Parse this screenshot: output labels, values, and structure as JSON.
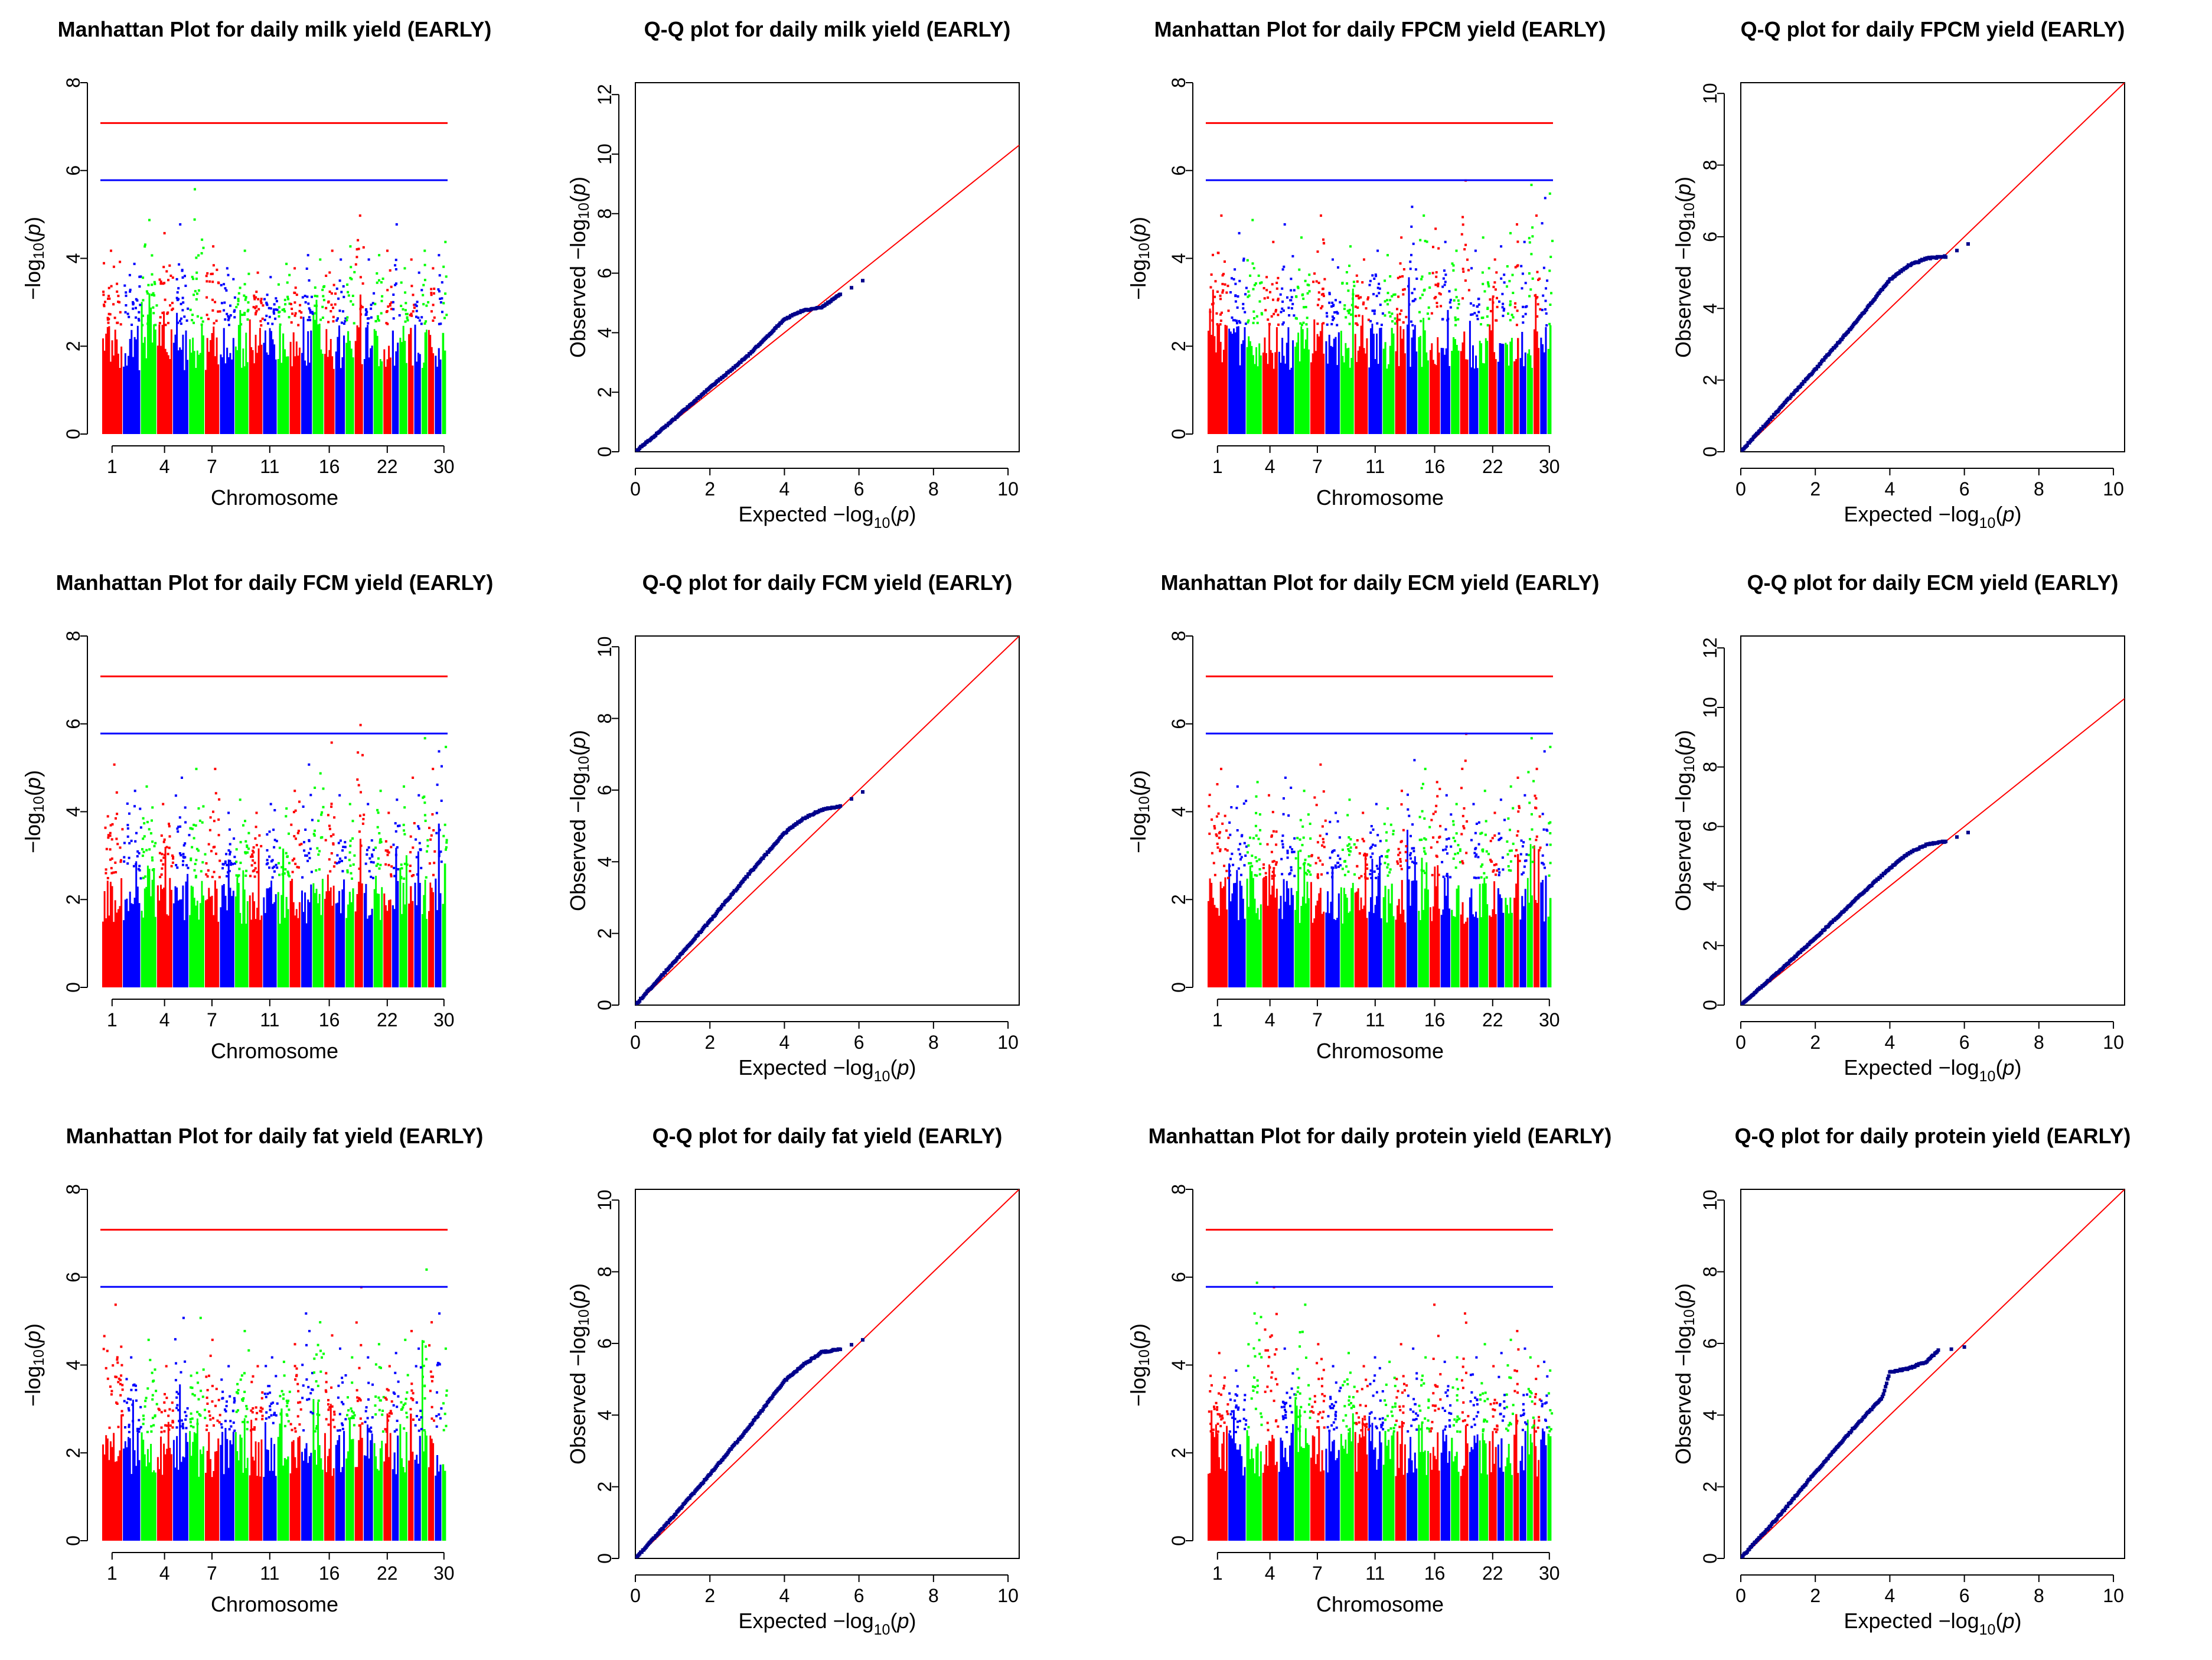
{
  "chart_data": [
    {
      "type": "manhattan",
      "title": "Manhattan Plot for daily milk yield (EARLY)",
      "xlabel": "Chromosome",
      "ylabel": "−log10(p)",
      "ylim": [
        0,
        8
      ],
      "yticks": [
        0,
        2,
        4,
        6,
        8
      ],
      "xtick_labels": [
        "1",
        "4",
        "7",
        "11",
        "16",
        "22",
        "30"
      ],
      "xtick_chromosomes": [
        1,
        4,
        7,
        11,
        16,
        22,
        30
      ],
      "colors": [
        "#ff0000",
        "#0000ff",
        "#00ff00"
      ],
      "genomewide_threshold": 7.08,
      "suggestive_threshold": 5.78,
      "chromosome_peaks": [
        4.2,
        3.9,
        4.9,
        4.6,
        4.8,
        5.6,
        4.3,
        3.8,
        4.2,
        3.7,
        3.6,
        3.9,
        3.8,
        4.1,
        4.0,
        4.2,
        4.0,
        4.3,
        5.0,
        4.0,
        4.1,
        4.2,
        4.8,
        3.8,
        4.0,
        3.7,
        4.2,
        3.8,
        4.1,
        4.4
      ]
    },
    {
      "type": "qq",
      "title": "Q-Q plot for daily milk yield (EARLY)",
      "xlabel": "Expected −log10(p)",
      "ylabel": "Observed −log10(p)",
      "xlim": [
        0,
        10.3
      ],
      "ylim": [
        0,
        12.4
      ],
      "xticks": [
        0,
        2,
        4,
        6,
        8,
        10
      ],
      "yticks": [
        0,
        2,
        4,
        6,
        8,
        10,
        12
      ],
      "observed_curve": [
        [
          0,
          0
        ],
        [
          1,
          1.05
        ],
        [
          2,
          2.15
        ],
        [
          3,
          3.2
        ],
        [
          4,
          4.45
        ],
        [
          4.5,
          4.75
        ],
        [
          5,
          4.85
        ],
        [
          5.5,
          5.3
        ],
        [
          6.1,
          5.75
        ]
      ]
    },
    {
      "type": "manhattan",
      "title": "Manhattan Plot for daily FPCM yield (EARLY)",
      "xlabel": "Chromosome",
      "ylabel": "−log10(p)",
      "ylim": [
        0,
        8
      ],
      "yticks": [
        0,
        2,
        4,
        6,
        8
      ],
      "xtick_labels": [
        "1",
        "4",
        "7",
        "11",
        "16",
        "22",
        "30"
      ],
      "xtick_chromosomes": [
        1,
        4,
        7,
        11,
        16,
        22,
        30
      ],
      "colors": [
        "#ff0000",
        "#0000ff",
        "#00ff00"
      ],
      "genomewide_threshold": 7.08,
      "suggestive_threshold": 5.78,
      "chromosome_peaks": [
        5.0,
        4.6,
        4.9,
        4.4,
        4.8,
        4.5,
        5.0,
        4.0,
        4.3,
        4.0,
        4.2,
        4.1,
        4.5,
        5.2,
        5.0,
        4.7,
        4.4,
        4.2,
        5.8,
        4.2,
        4.5,
        4.0,
        4.3,
        4.6,
        4.8,
        4.4,
        5.7,
        5.0,
        5.4,
        5.5
      ]
    },
    {
      "type": "qq",
      "title": "Q-Q plot for daily FPCM yield (EARLY)",
      "xlabel": "Expected −log10(p)",
      "ylabel": "Observed −log10(p)",
      "xlim": [
        0,
        10.3
      ],
      "ylim": [
        0,
        10.3
      ],
      "xticks": [
        0,
        2,
        4,
        6,
        8,
        10
      ],
      "yticks": [
        0,
        2,
        4,
        6,
        8,
        10
      ],
      "observed_curve": [
        [
          0,
          0
        ],
        [
          1,
          1.15
        ],
        [
          2,
          2.3
        ],
        [
          3,
          3.5
        ],
        [
          4,
          4.8
        ],
        [
          4.5,
          5.2
        ],
        [
          5,
          5.4
        ],
        [
          5.5,
          5.45
        ],
        [
          6.1,
          5.8
        ]
      ]
    },
    {
      "type": "manhattan",
      "title": "Manhattan Plot for daily FCM yield (EARLY)",
      "xlabel": "Chromosome",
      "ylabel": "−log10(p)",
      "ylim": [
        0,
        8
      ],
      "yticks": [
        0,
        2,
        4,
        6,
        8
      ],
      "xtick_labels": [
        "1",
        "4",
        "7",
        "11",
        "16",
        "22",
        "30"
      ],
      "xtick_chromosomes": [
        1,
        4,
        7,
        11,
        16,
        22,
        30
      ],
      "colors": [
        "#ff0000",
        "#0000ff",
        "#00ff00"
      ],
      "genomewide_threshold": 7.08,
      "suggestive_threshold": 5.78,
      "chromosome_peaks": [
        5.1,
        4.5,
        4.6,
        4.2,
        4.8,
        5.0,
        5.0,
        4.0,
        4.3,
        4.0,
        4.2,
        4.1,
        4.5,
        5.1,
        4.9,
        5.6,
        4.4,
        4.2,
        6.0,
        4.2,
        4.5,
        4.0,
        4.3,
        4.6,
        4.8,
        4.4,
        5.7,
        5.0,
        5.4,
        5.5
      ]
    },
    {
      "type": "qq",
      "title": "Q-Q plot for daily FCM yield (EARLY)",
      "xlabel": "Expected −log10(p)",
      "ylabel": "Observed −log10(p)",
      "xlim": [
        0,
        10.3
      ],
      "ylim": [
        0,
        10.3
      ],
      "xticks": [
        0,
        2,
        4,
        6,
        8,
        10
      ],
      "yticks": [
        0,
        2,
        4,
        6,
        8,
        10
      ],
      "observed_curve": [
        [
          0,
          0
        ],
        [
          1,
          1.15
        ],
        [
          2,
          2.35
        ],
        [
          3,
          3.6
        ],
        [
          4,
          4.8
        ],
        [
          4.5,
          5.2
        ],
        [
          5,
          5.45
        ],
        [
          5.5,
          5.55
        ],
        [
          6.1,
          5.95
        ]
      ]
    },
    {
      "type": "manhattan",
      "title": "Manhattan Plot for daily ECM yield (EARLY)",
      "xlabel": "Chromosome",
      "ylabel": "−log10(p)",
      "ylim": [
        0,
        8
      ],
      "yticks": [
        0,
        2,
        4,
        6,
        8
      ],
      "xtick_labels": [
        "1",
        "4",
        "7",
        "11",
        "16",
        "22",
        "30"
      ],
      "xtick_chromosomes": [
        1,
        4,
        7,
        11,
        16,
        22,
        30
      ],
      "colors": [
        "#ff0000",
        "#0000ff",
        "#00ff00"
      ],
      "genomewide_threshold": 7.08,
      "suggestive_threshold": 5.78,
      "chromosome_peaks": [
        5.0,
        4.6,
        4.7,
        4.4,
        4.8,
        4.5,
        5.1,
        4.0,
        4.3,
        4.0,
        4.2,
        4.1,
        4.5,
        5.2,
        5.0,
        4.7,
        4.4,
        4.2,
        5.8,
        4.2,
        4.5,
        4.0,
        4.3,
        4.6,
        4.8,
        4.4,
        5.7,
        5.0,
        5.4,
        5.5
      ]
    },
    {
      "type": "qq",
      "title": "Q-Q plot for daily ECM yield (EARLY)",
      "xlabel": "Expected −log10(p)",
      "ylabel": "Observed −log10(p)",
      "xlim": [
        0,
        10.3
      ],
      "ylim": [
        0,
        12.4
      ],
      "xticks": [
        0,
        2,
        4,
        6,
        8,
        10
      ],
      "yticks": [
        0,
        2,
        4,
        6,
        8,
        10,
        12
      ],
      "observed_curve": [
        [
          0,
          0
        ],
        [
          1,
          1.1
        ],
        [
          2,
          2.25
        ],
        [
          3,
          3.45
        ],
        [
          4,
          4.6
        ],
        [
          4.5,
          5.1
        ],
        [
          5,
          5.4
        ],
        [
          5.5,
          5.5
        ],
        [
          6.1,
          5.8
        ]
      ]
    },
    {
      "type": "manhattan",
      "title": "Manhattan Plot for daily fat yield (EARLY)",
      "xlabel": "Chromosome",
      "ylabel": "−log10(p)",
      "ylim": [
        0,
        8
      ],
      "yticks": [
        0,
        2,
        4,
        6,
        8
      ],
      "xtick_labels": [
        "1",
        "4",
        "7",
        "11",
        "16",
        "22",
        "30"
      ],
      "xtick_chromosomes": [
        1,
        4,
        7,
        11,
        16,
        22,
        30
      ],
      "colors": [
        "#ff0000",
        "#0000ff",
        "#00ff00"
      ],
      "genomewide_threshold": 7.08,
      "suggestive_threshold": 5.78,
      "chromosome_peaks": [
        5.4,
        4.2,
        4.6,
        4.0,
        5.1,
        5.1,
        4.6,
        4.0,
        4.8,
        4.0,
        4.2,
        4.1,
        4.5,
        5.2,
        5.0,
        4.7,
        4.4,
        4.2,
        5.8,
        4.2,
        4.5,
        4.0,
        4.3,
        4.6,
        4.8,
        4.4,
        6.2,
        5.0,
        5.2,
        4.4
      ]
    },
    {
      "type": "qq",
      "title": "Q-Q plot for daily fat yield (EARLY)",
      "xlabel": "Expected −log10(p)",
      "ylabel": "Observed −log10(p)",
      "xlim": [
        0,
        10.3
      ],
      "ylim": [
        0,
        10.3
      ],
      "xticks": [
        0,
        2,
        4,
        6,
        8,
        10
      ],
      "yticks": [
        0,
        2,
        4,
        6,
        8,
        10
      ],
      "observed_curve": [
        [
          0,
          0
        ],
        [
          1,
          1.15
        ],
        [
          2,
          2.35
        ],
        [
          3,
          3.6
        ],
        [
          4,
          4.95
        ],
        [
          4.5,
          5.4
        ],
        [
          5,
          5.75
        ],
        [
          5.5,
          5.85
        ],
        [
          6.1,
          6.1
        ]
      ]
    },
    {
      "type": "manhattan",
      "title": "Manhattan Plot for daily protein yield (EARLY)",
      "xlabel": "Chromosome",
      "ylabel": "−log10(p)",
      "ylim": [
        0,
        8
      ],
      "yticks": [
        0,
        2,
        4,
        6,
        8
      ],
      "xtick_labels": [
        "1",
        "4",
        "7",
        "11",
        "16",
        "22",
        "30"
      ],
      "xtick_chromosomes": [
        1,
        4,
        7,
        11,
        16,
        22,
        30
      ],
      "colors": [
        "#ff0000",
        "#0000ff",
        "#00ff00"
      ],
      "genomewide_threshold": 7.08,
      "suggestive_threshold": 5.78,
      "chromosome_peaks": [
        4.3,
        3.9,
        5.9,
        5.8,
        4.4,
        5.4,
        4.5,
        4.0,
        4.3,
        4.0,
        4.2,
        4.1,
        4.5,
        4.4,
        4.2,
        5.4,
        4.1,
        4.2,
        5.2,
        4.2,
        4.5,
        4.0,
        4.3,
        4.6,
        4.8,
        4.4,
        4.2,
        4.0,
        4.1,
        3.9
      ]
    },
    {
      "type": "qq",
      "title": "Q-Q plot for daily protein yield (EARLY)",
      "xlabel": "Expected −log10(p)",
      "ylabel": "Observed −log10(p)",
      "xlim": [
        0,
        10.3
      ],
      "ylim": [
        0,
        10.3
      ],
      "xticks": [
        0,
        2,
        4,
        6,
        8,
        10
      ],
      "yticks": [
        0,
        2,
        4,
        6,
        8,
        10
      ],
      "observed_curve": [
        [
          0,
          0
        ],
        [
          1,
          1.15
        ],
        [
          2,
          2.4
        ],
        [
          3,
          3.6
        ],
        [
          3.8,
          4.5
        ],
        [
          4,
          5.2
        ],
        [
          4.5,
          5.3
        ],
        [
          5,
          5.5
        ],
        [
          5.3,
          5.8
        ],
        [
          6,
          5.9
        ]
      ]
    }
  ]
}
